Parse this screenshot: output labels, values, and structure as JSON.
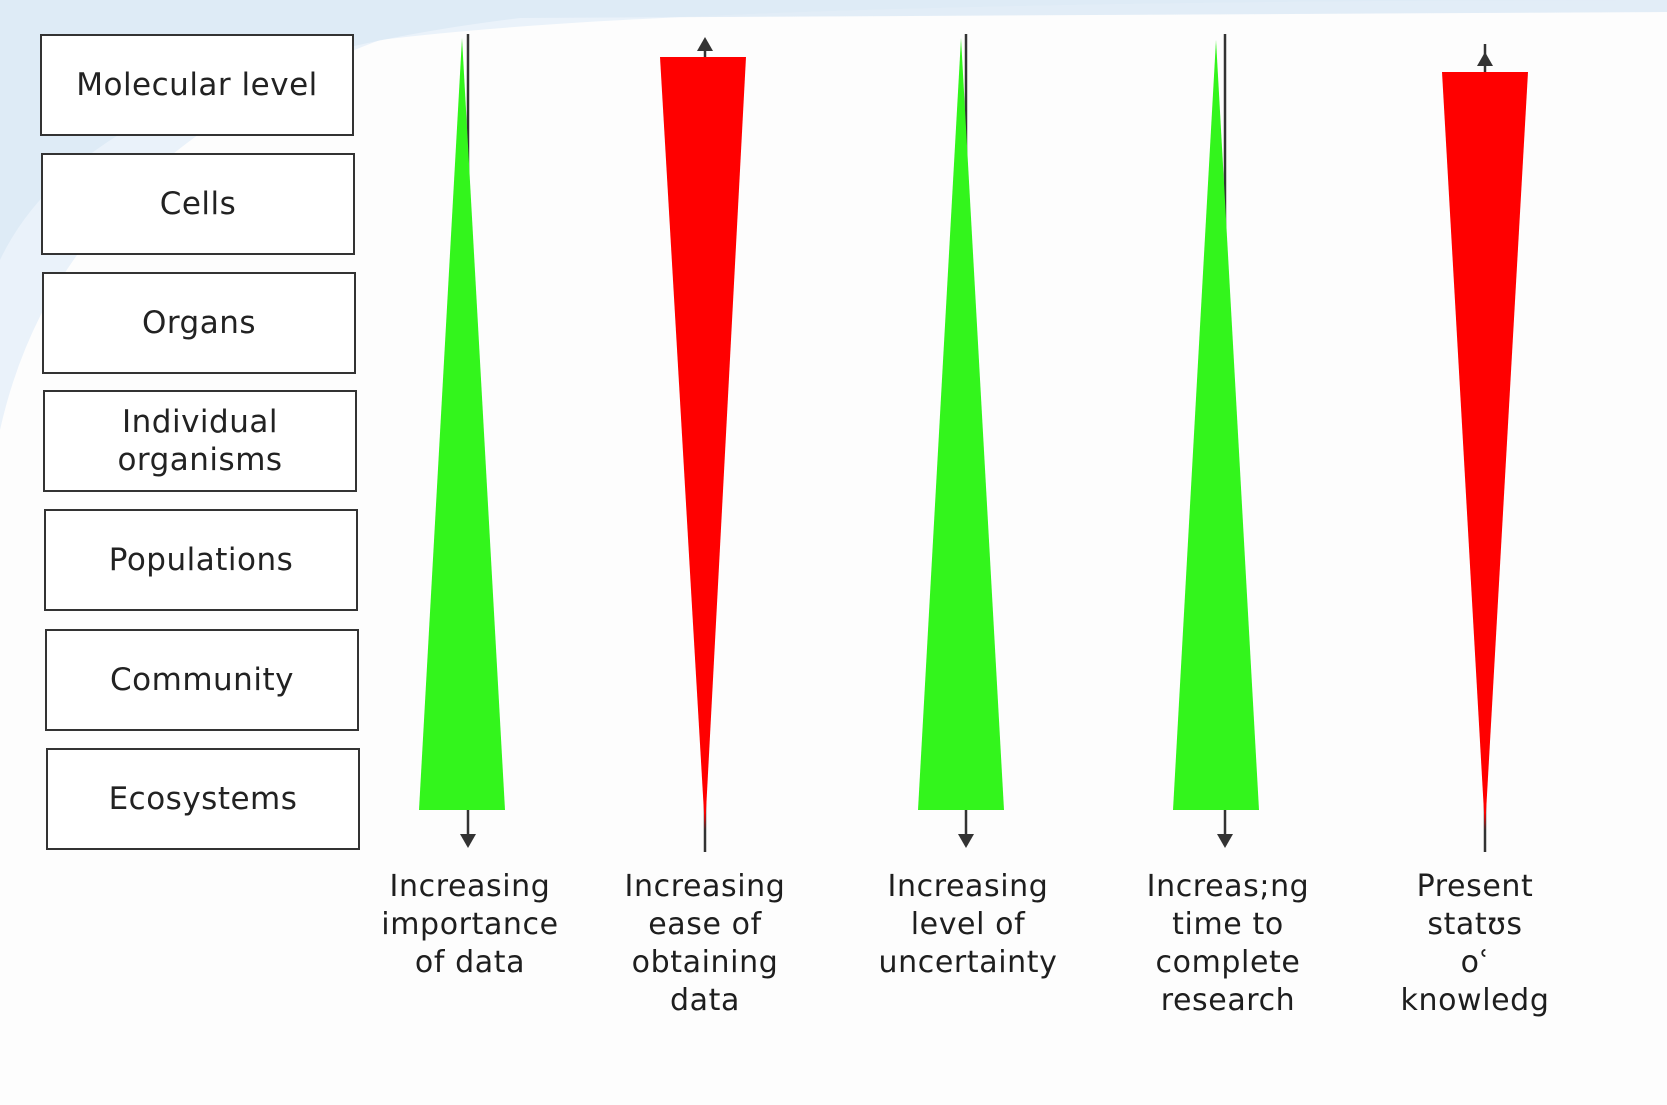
{
  "levels": [
    "Molecular level",
    "Cells",
    "Organs",
    "Individual organisms",
    "Populations",
    "Community",
    "Ecosystems"
  ],
  "indicators": [
    {
      "direction": "down",
      "color": "#33f51c",
      "caption": [
        "Increasing",
        "importance",
        "of data"
      ]
    },
    {
      "direction": "up",
      "color": "#ff0000",
      "caption": [
        "Increasing",
        "ease of",
        "obtaining",
        "data"
      ]
    },
    {
      "direction": "down",
      "color": "#33f51c",
      "caption": [
        "Increasing",
        "level of",
        "uncertainty"
      ]
    },
    {
      "direction": "down",
      "color": "#33f51c",
      "caption": [
        "Increas;ng",
        "time to",
        "complete",
        "research"
      ]
    },
    {
      "direction": "up",
      "color": "#ff0000",
      "caption": [
        "Present",
        "statʊs",
        "oʿ",
        "knowledg"
      ]
    }
  ],
  "colors": {
    "increasing_wedge": "#33f51c",
    "decreasing_wedge": "#ff0000",
    "line": "#333333",
    "background_accent": "#e3eef8"
  }
}
